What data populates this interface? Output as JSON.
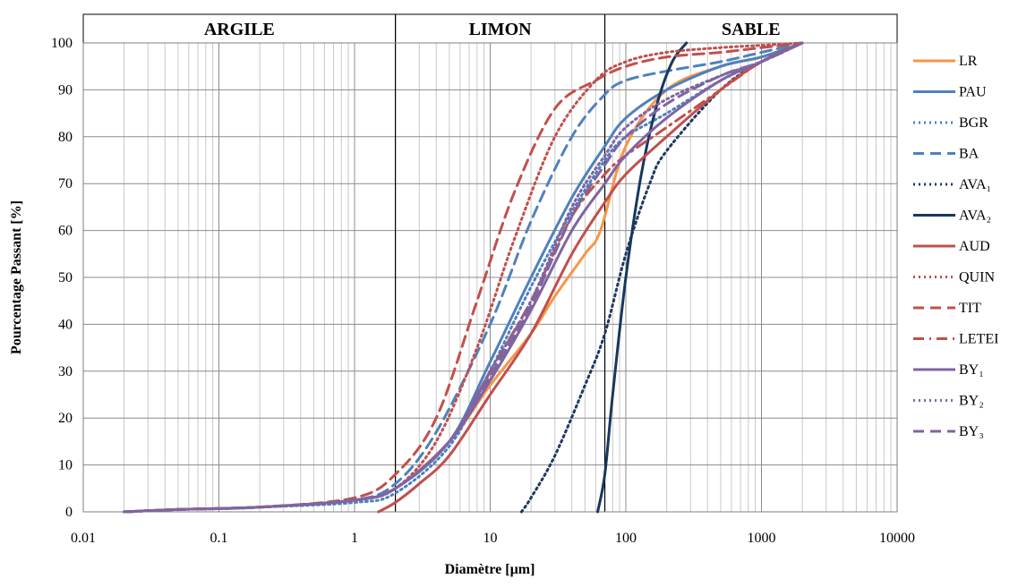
{
  "chart_data": {
    "type": "line",
    "xlabel": "Diamètre  [µm]",
    "ylabel": "Pourcentage Passant [%]",
    "x_scale": "log",
    "xlim": [
      0.01,
      10000
    ],
    "ylim": [
      0,
      100
    ],
    "x_tick_labels": [
      "0.01",
      "0.1",
      "1",
      "10",
      "100",
      "1000",
      "10000"
    ],
    "x_ticks": [
      0.01,
      0.1,
      1,
      10,
      100,
      1000,
      10000
    ],
    "y_ticks": [
      0,
      10,
      20,
      30,
      40,
      50,
      60,
      70,
      80,
      90,
      100
    ],
    "grid": true,
    "legend_position": "right",
    "bands": [
      {
        "label": "ARGILE",
        "from": 0.01,
        "to": 2
      },
      {
        "label": "LIMON",
        "from": 2,
        "to": 70
      },
      {
        "label": "SABLE",
        "from": 70,
        "to": 10000
      }
    ],
    "series": [
      {
        "name": "LR",
        "color": "#f79646",
        "dash": "solid",
        "points": [
          [
            0.02,
            0
          ],
          [
            0.05,
            0.5
          ],
          [
            0.2,
            1
          ],
          [
            1,
            2.5
          ],
          [
            2,
            5
          ],
          [
            5,
            15
          ],
          [
            10,
            27
          ],
          [
            20,
            38
          ],
          [
            30,
            46
          ],
          [
            50,
            55
          ],
          [
            65,
            60
          ],
          [
            100,
            78
          ],
          [
            200,
            90
          ],
          [
            500,
            95
          ],
          [
            1000,
            97
          ],
          [
            2000,
            100
          ]
        ]
      },
      {
        "name": "PAU",
        "color": "#4f81bd",
        "dash": "solid",
        "points": [
          [
            0.02,
            0
          ],
          [
            0.05,
            0.5
          ],
          [
            0.2,
            1
          ],
          [
            1,
            2.5
          ],
          [
            2,
            5
          ],
          [
            5,
            15
          ],
          [
            10,
            32
          ],
          [
            20,
            50
          ],
          [
            40,
            67
          ],
          [
            70,
            78
          ],
          [
            100,
            84
          ],
          [
            200,
            90
          ],
          [
            500,
            95
          ],
          [
            1000,
            97
          ],
          [
            2000,
            100
          ]
        ]
      },
      {
        "name": "BGR",
        "color": "#4f81bd",
        "dash": "dot",
        "points": [
          [
            0.02,
            0
          ],
          [
            0.05,
            0.5
          ],
          [
            0.2,
            1
          ],
          [
            1,
            2
          ],
          [
            2,
            4
          ],
          [
            5,
            14
          ],
          [
            10,
            30
          ],
          [
            20,
            48
          ],
          [
            40,
            64
          ],
          [
            70,
            75
          ],
          [
            100,
            80
          ],
          [
            200,
            85
          ],
          [
            500,
            92
          ],
          [
            1000,
            96
          ],
          [
            2000,
            100
          ]
        ]
      },
      {
        "name": "BA",
        "color": "#4f81bd",
        "dash": "dash",
        "points": [
          [
            0.02,
            0
          ],
          [
            0.05,
            0.5
          ],
          [
            0.2,
            1
          ],
          [
            1,
            2.5
          ],
          [
            2,
            6
          ],
          [
            4,
            17
          ],
          [
            10,
            40
          ],
          [
            20,
            62
          ],
          [
            40,
            80
          ],
          [
            70,
            89
          ],
          [
            100,
            92
          ],
          [
            200,
            94
          ],
          [
            500,
            96
          ],
          [
            1000,
            98
          ],
          [
            2000,
            100
          ]
        ]
      },
      {
        "name": "AVA₁",
        "color": "#1f3864",
        "dash": "dot",
        "points": [
          [
            17,
            0
          ],
          [
            20,
            3
          ],
          [
            30,
            12
          ],
          [
            50,
            27
          ],
          [
            70,
            38
          ],
          [
            100,
            55
          ],
          [
            150,
            70
          ],
          [
            200,
            77
          ],
          [
            500,
            90
          ],
          [
            1000,
            96
          ],
          [
            2000,
            100
          ]
        ]
      },
      {
        "name": "AVA₂",
        "color": "#17375e",
        "dash": "solid",
        "points": [
          [
            62,
            0
          ],
          [
            70,
            8
          ],
          [
            80,
            25
          ],
          [
            100,
            50
          ],
          [
            130,
            72
          ],
          [
            170,
            87
          ],
          [
            220,
            96
          ],
          [
            280,
            100
          ]
        ]
      },
      {
        "name": "AUD",
        "color": "#c0504d",
        "dash": "solid",
        "points": [
          [
            1.5,
            0
          ],
          [
            2,
            2
          ],
          [
            3,
            6
          ],
          [
            5,
            12
          ],
          [
            10,
            25
          ],
          [
            20,
            38
          ],
          [
            40,
            55
          ],
          [
            70,
            66
          ],
          [
            100,
            72
          ],
          [
            200,
            80
          ],
          [
            500,
            90
          ],
          [
            1000,
            96
          ],
          [
            2000,
            100
          ]
        ]
      },
      {
        "name": "QUIN",
        "color": "#c0504d",
        "dash": "dot",
        "points": [
          [
            0.02,
            0
          ],
          [
            0.05,
            0.5
          ],
          [
            0.2,
            1
          ],
          [
            1,
            2.5
          ],
          [
            2,
            5
          ],
          [
            4,
            15
          ],
          [
            8,
            35
          ],
          [
            15,
            58
          ],
          [
            30,
            80
          ],
          [
            60,
            92
          ],
          [
            100,
            96
          ],
          [
            200,
            98
          ],
          [
            500,
            99
          ],
          [
            1000,
            99.5
          ],
          [
            2000,
            100
          ]
        ]
      },
      {
        "name": "TIT",
        "color": "#c0504d",
        "dash": "dash",
        "points": [
          [
            0.02,
            0
          ],
          [
            0.05,
            0.5
          ],
          [
            0.2,
            1
          ],
          [
            1,
            3
          ],
          [
            2,
            8
          ],
          [
            4,
            20
          ],
          [
            8,
            45
          ],
          [
            15,
            68
          ],
          [
            30,
            86
          ],
          [
            60,
            92
          ],
          [
            100,
            95
          ],
          [
            200,
            97
          ],
          [
            500,
            98
          ],
          [
            1000,
            99
          ],
          [
            2000,
            100
          ]
        ]
      },
      {
        "name": "LETEI",
        "color": "#c0504d",
        "dash": "dashdot",
        "points": [
          [
            0.02,
            0
          ],
          [
            0.05,
            0.5
          ],
          [
            0.2,
            1
          ],
          [
            1,
            2.5
          ],
          [
            2,
            5
          ],
          [
            5,
            15
          ],
          [
            10,
            30
          ],
          [
            20,
            45
          ],
          [
            40,
            63
          ],
          [
            70,
            72
          ],
          [
            100,
            76
          ],
          [
            200,
            82
          ],
          [
            500,
            90
          ],
          [
            1000,
            96
          ],
          [
            2000,
            100
          ]
        ]
      },
      {
        "name": "BY₁",
        "color": "#8064a2",
        "dash": "solid",
        "points": [
          [
            0.02,
            0
          ],
          [
            0.05,
            0.5
          ],
          [
            0.2,
            1
          ],
          [
            1,
            2.5
          ],
          [
            2,
            5
          ],
          [
            5,
            15
          ],
          [
            10,
            28
          ],
          [
            20,
            43
          ],
          [
            40,
            60
          ],
          [
            70,
            70
          ],
          [
            100,
            76
          ],
          [
            200,
            84
          ],
          [
            500,
            92
          ],
          [
            1000,
            96
          ],
          [
            2000,
            100
          ]
        ]
      },
      {
        "name": "BY₂",
        "color": "#8064a2",
        "dash": "dot",
        "points": [
          [
            0.02,
            0
          ],
          [
            0.05,
            0.5
          ],
          [
            0.2,
            1
          ],
          [
            1,
            2.5
          ],
          [
            2,
            5
          ],
          [
            5,
            15
          ],
          [
            10,
            30
          ],
          [
            20,
            45
          ],
          [
            40,
            65
          ],
          [
            70,
            76
          ],
          [
            100,
            82
          ],
          [
            200,
            88
          ],
          [
            500,
            93
          ],
          [
            1000,
            96
          ],
          [
            2000,
            100
          ]
        ]
      },
      {
        "name": "BY₃",
        "color": "#8064a2",
        "dash": "dash",
        "points": [
          [
            0.02,
            0
          ],
          [
            0.05,
            0.5
          ],
          [
            0.2,
            1
          ],
          [
            1,
            2.5
          ],
          [
            2,
            5
          ],
          [
            5,
            15
          ],
          [
            10,
            29
          ],
          [
            20,
            44
          ],
          [
            40,
            63
          ],
          [
            70,
            74
          ],
          [
            100,
            80
          ],
          [
            200,
            87
          ],
          [
            500,
            93
          ],
          [
            1000,
            96
          ],
          [
            2000,
            100
          ]
        ]
      }
    ]
  }
}
